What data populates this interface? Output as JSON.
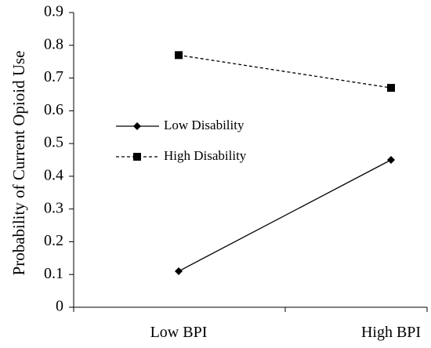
{
  "chart_data": {
    "type": "line",
    "title": "",
    "xlabel": "",
    "ylabel": "Probability of Current Opioid Use",
    "categories": [
      "Low BPI",
      "High BPI"
    ],
    "ylim": [
      0,
      0.9
    ],
    "y_ticks": [
      "0",
      "0.1",
      "0.2",
      "0.3",
      "0.4",
      "0.5",
      "0.6",
      "0.7",
      "0.8",
      "0.9"
    ],
    "grid": false,
    "legend_position": "center-left",
    "series": [
      {
        "name": "Low Disability",
        "values": [
          0.11,
          0.45
        ],
        "line_style": "solid",
        "marker": "diamond",
        "color": "#000000"
      },
      {
        "name": "High Disability",
        "values": [
          0.77,
          0.67
        ],
        "line_style": "dashed",
        "marker": "square",
        "color": "#000000"
      }
    ]
  }
}
